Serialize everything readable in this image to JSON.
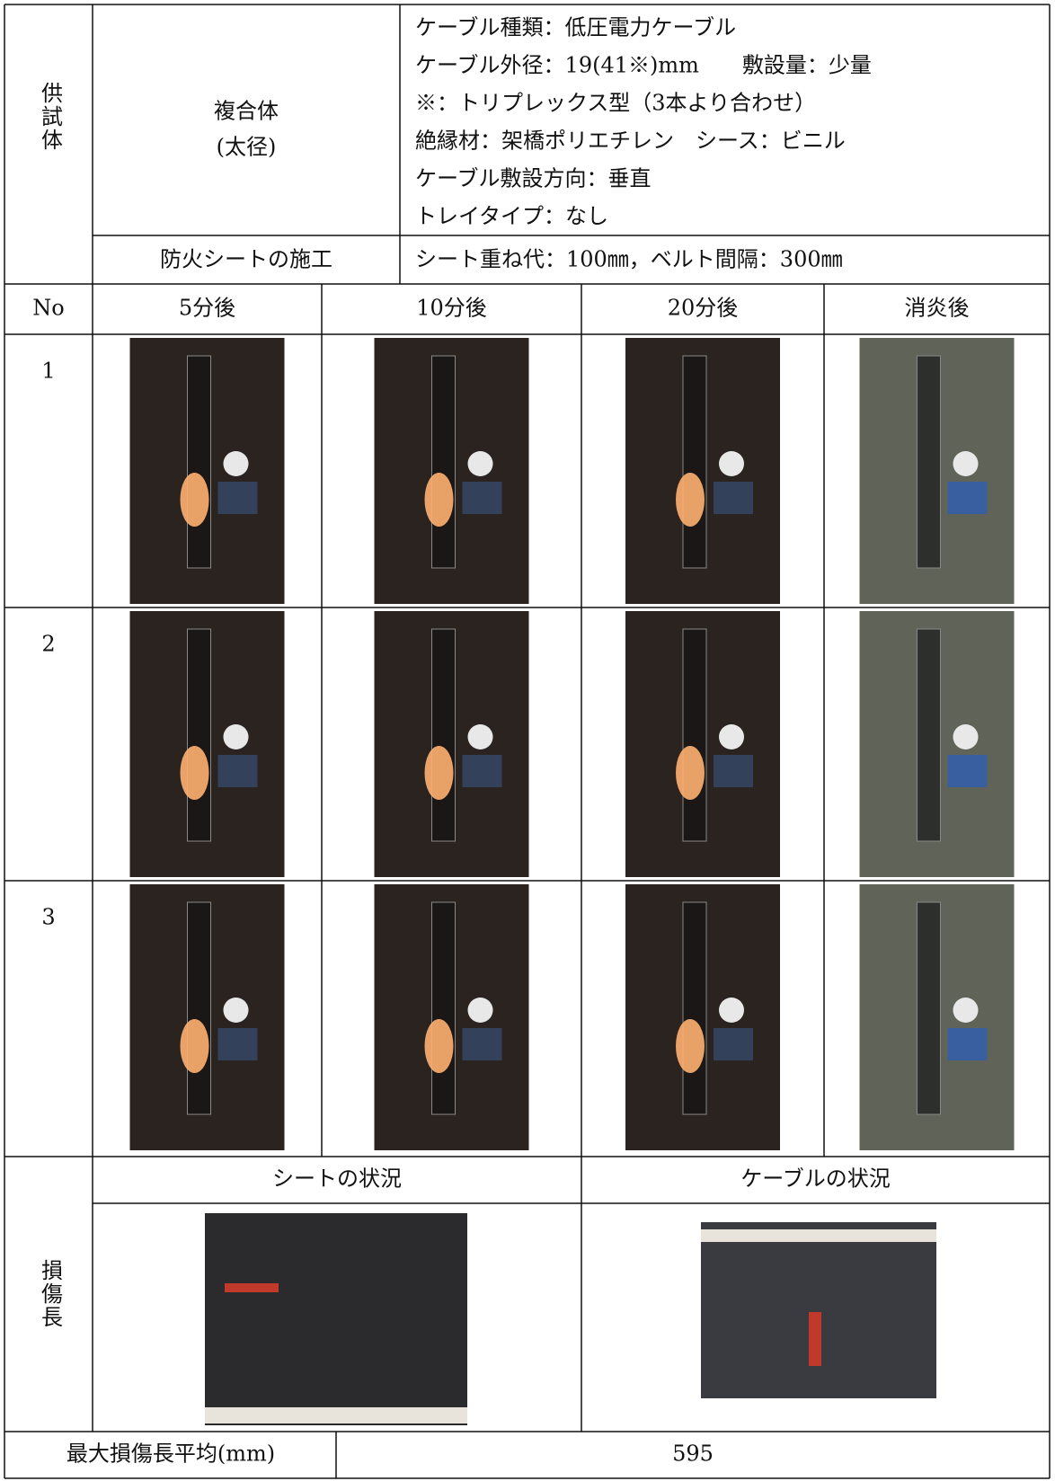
{
  "specimen": {
    "label": "供試体",
    "name": [
      "複合体",
      "(太径)"
    ],
    "details": [
      "ケーブル種類：低圧電力ケーブル",
      "ケーブル外径：19(41※)mm　　敷設量：少量",
      "※：トリプレックス型（3本より合わせ）",
      "絶縁材：架橋ポリエチレン　シース：ビニル",
      "ケーブル敷設方向：垂直",
      "トレイタイプ：なし"
    ],
    "construction_label": "防火シートの施工",
    "construction": "シート重ね代：100㎜，ベルト間隔：300㎜"
  },
  "photo_table": {
    "headers": [
      "No",
      "5分後",
      "10分後",
      "20分後",
      "消炎後"
    ],
    "rows": [
      "1",
      "2",
      "3"
    ]
  },
  "damage": {
    "label": "損傷長",
    "headers": [
      "シートの状況",
      "ケーブルの状況"
    ]
  },
  "summary": {
    "label": "最大損傷長平均(mm)",
    "value": "595"
  }
}
